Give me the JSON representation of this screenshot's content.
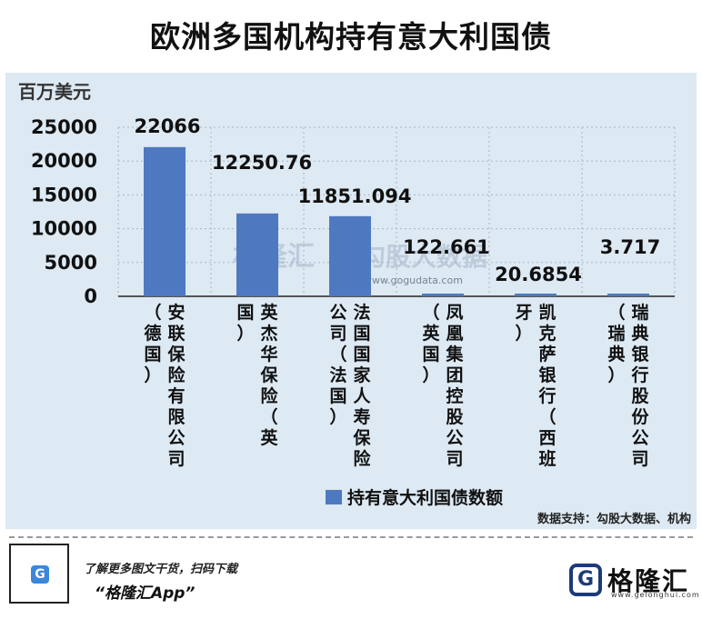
{
  "header": {
    "title": "欧洲多国机构持有意大利国债"
  },
  "chart_data": {
    "type": "bar",
    "ylabel": "百万美元",
    "ylim": [
      0,
      25000
    ],
    "yticks": [
      0,
      5000,
      10000,
      15000,
      20000,
      25000
    ],
    "ytick_labels": [
      "0",
      "5000",
      "10000",
      "15000",
      "20000",
      "25000"
    ],
    "grid": true,
    "legend_position": "bottom",
    "color": "#4e79c0",
    "series": [
      {
        "name": "持有意大利国债数额",
        "values": [
          22066,
          12250.76,
          11851.094,
          122.661,
          20.6854,
          3.717
        ]
      }
    ],
    "categories": [
      "安联保险有限公司（德国）",
      "英杰华保险（英国）",
      "法国国家人寿保险公司（法国）",
      "凤凰集团控股公司（英国）",
      "凯克萨银行（西班牙）",
      "瑞典银行股份公司（瑞典）"
    ],
    "data_labels": [
      "22066",
      "12250.76",
      "11851.094",
      "122.661",
      "20.6854",
      "3.717"
    ],
    "category_label_columns": [
      [
        "安联保险有限公司",
        "（德国）"
      ],
      [
        "英杰华保险（英",
        "国）"
      ],
      [
        "法国国家人寿保险",
        "公司（法国）"
      ],
      [
        "凤凰集团控股公司",
        "（英国）"
      ],
      [
        "凯克萨银行（西班",
        "牙）"
      ],
      [
        "瑞典银行股份公司",
        "（瑞典）"
      ]
    ]
  },
  "watermark": {
    "brand": "格隆汇",
    "text": "勾股大数据",
    "url": "www.gogudata.com"
  },
  "source": "数据支持：勾股大数据、机构",
  "footer": {
    "promo_line1": "了解更多图文干货，扫码下载",
    "promo_line2": "“格隆汇App”",
    "brand_name": "格隆汇",
    "brand_url": "www.gelonghui.com",
    "qr_icon": "G"
  }
}
